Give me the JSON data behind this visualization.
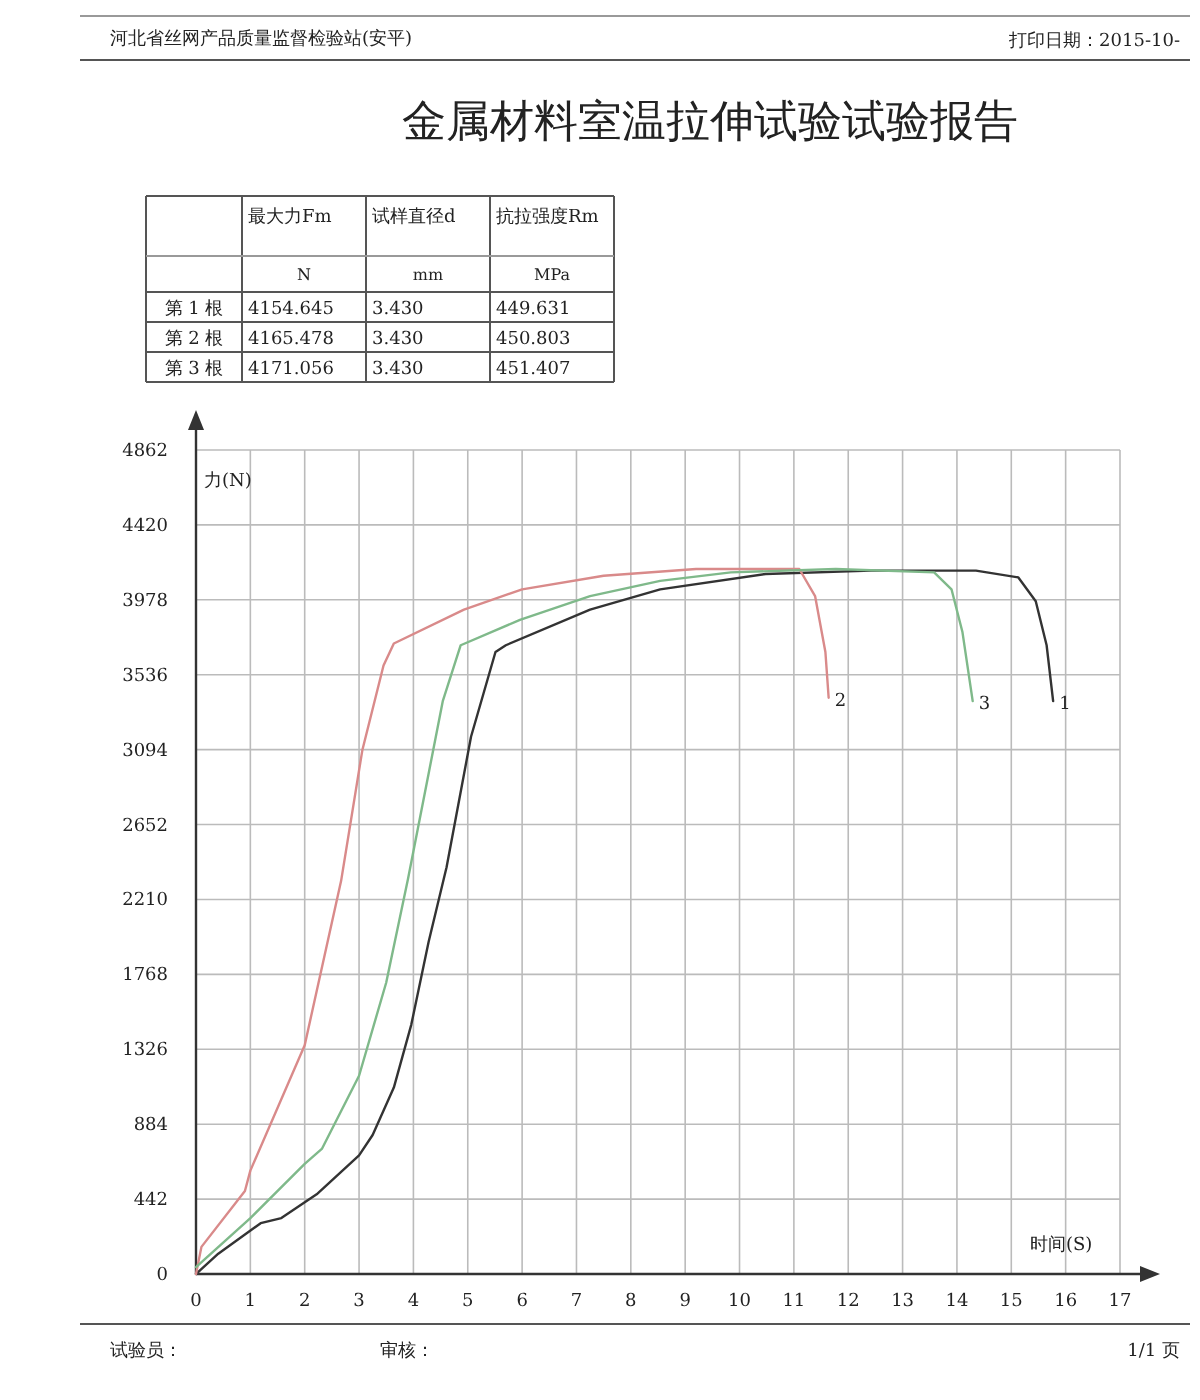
{
  "chart_data": [
    {
      "type": "other",
      "title": "金属材料室温拉伸试验试验报告",
      "annotations": [
        "河北省丝网产品质量监督检验站(安平)",
        "打印日期：2015-10-",
        "试验员：",
        "审核：",
        "1/1 页"
      ]
    },
    {
      "type": "heatmap",
      "categories": [
        "最大力Fm\nN",
        "试样直径d\nmm",
        "抗拉强度Rm\nMPa"
      ],
      "y_categories": [
        "第 1 根",
        "第 2 根",
        "第 3 根"
      ],
      "cells": [
        [
          4154.645,
          3.43,
          449.631
        ],
        [
          4165.478,
          3.43,
          450.803
        ],
        [
          4171.056,
          3.43,
          451.407
        ]
      ],
      "cell_labels": [
        [
          "4154.645",
          "3.430",
          "449.631"
        ],
        [
          "4165.478",
          "3.430",
          "450.803"
        ],
        [
          "4171.056",
          "3.430",
          "451.407"
        ]
      ]
    },
    {
      "type": "line",
      "xlabel": "时间(S)",
      "ylabel": "力(N)",
      "xlim": [
        0,
        17
      ],
      "ylim": [
        0,
        4862
      ],
      "xticks": [
        0,
        1,
        2,
        3,
        4,
        5,
        6,
        7,
        8,
        9,
        10,
        11,
        12,
        13,
        14,
        15,
        16,
        17
      ],
      "yticks": [
        0,
        442,
        884,
        1326,
        1768,
        2210,
        2652,
        3094,
        3536,
        3978,
        4420,
        4862
      ],
      "grid": true,
      "series": [
        {
          "name": "1",
          "color": "#333333",
          "x": [
            0,
            0.41,
            1.19,
            1.57,
            2.22,
            3.0,
            3.25,
            3.64,
            3.96,
            4.28,
            4.61,
            5.06,
            5.51,
            5.7,
            7.25,
            8.54,
            10.48,
            12.42,
            14.35,
            15.13,
            15.45,
            15.65,
            15.77
          ],
          "values": [
            0,
            120,
            300,
            330,
            470,
            700,
            820,
            1100,
            1470,
            1960,
            2400,
            3170,
            3670,
            3710,
            3920,
            4040,
            4130,
            4150,
            4150,
            4110,
            3970,
            3710,
            3380
          ]
        },
        {
          "name": "2",
          "color": "#d98a8a",
          "x": [
            0,
            0.1,
            0.9,
            1.0,
            2.0,
            2.67,
            3.06,
            3.45,
            3.64,
            4.93,
            6.0,
            7.5,
            9.2,
            11.1,
            11.39,
            11.58,
            11.64
          ],
          "values": [
            0,
            160,
            490,
            610,
            1350,
            2320,
            3090,
            3590,
            3720,
            3920,
            4040,
            4120,
            4160,
            4160,
            4000,
            3670,
            3400
          ]
        },
        {
          "name": "3",
          "color": "#7fb98a",
          "x": [
            0,
            1.0,
            2.0,
            2.32,
            3.0,
            3.5,
            3.9,
            4.29,
            4.54,
            4.87,
            5.96,
            7.25,
            8.54,
            9.84,
            11.77,
            13.58,
            13.9,
            14.1,
            14.29
          ],
          "values": [
            40,
            330,
            650,
            740,
            1170,
            1720,
            2330,
            2970,
            3380,
            3710,
            3860,
            4000,
            4090,
            4140,
            4160,
            4140,
            4040,
            3790,
            3380
          ]
        }
      ]
    }
  ]
}
